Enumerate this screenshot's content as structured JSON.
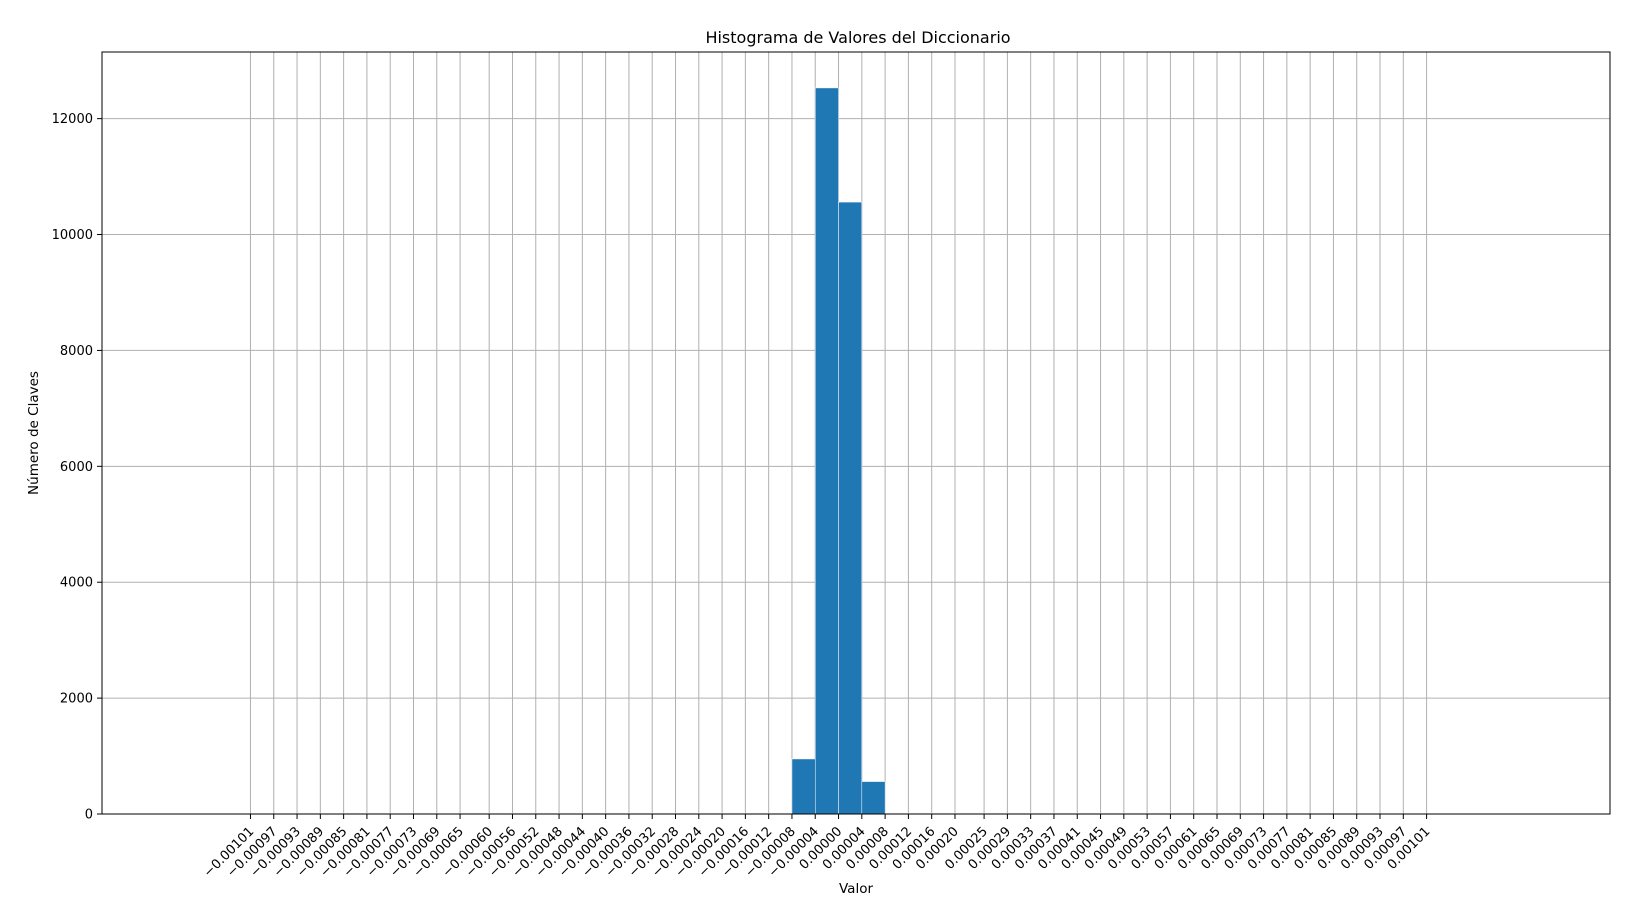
{
  "chart_data": {
    "type": "bar",
    "title": "Histograma de Valores del Diccionario",
    "xlabel": "Valor",
    "ylabel": "Número de Claves",
    "grid": true,
    "bar_color": "#1f77b4",
    "grid_color": "#b0b0b0",
    "ylim": [
      0,
      13150
    ],
    "yticks": [
      0,
      2000,
      4000,
      6000,
      8000,
      10000,
      12000
    ],
    "ytick_labels": [
      "0",
      "2000",
      "4000",
      "6000",
      "8000",
      "10000",
      "12000"
    ],
    "xlim": [
      -0.001265,
      0.001325
    ],
    "xticks": [
      -0.00101,
      -0.00097,
      -0.00093,
      -0.00089,
      -0.00085,
      -0.00081,
      -0.00077,
      -0.00073,
      -0.00069,
      -0.00065,
      -0.0006,
      -0.00056,
      -0.00052,
      -0.00048,
      -0.00044,
      -0.0004,
      -0.00036,
      -0.00032,
      -0.00028,
      -0.00024,
      -0.0002,
      -0.00016,
      -0.00012,
      -8e-05,
      -4e-05,
      0.0,
      4e-05,
      8e-05,
      0.00012,
      0.00016,
      0.0002,
      0.00025,
      0.00029,
      0.00033,
      0.00037,
      0.00041,
      0.00045,
      0.00049,
      0.00053,
      0.00057,
      0.00061,
      0.00065,
      0.00069,
      0.00073,
      0.00077,
      0.00081,
      0.00085,
      0.00089,
      0.00093,
      0.00097,
      0.00101
    ],
    "xtick_labels": [
      "−0.00101",
      "−0.00097",
      "−0.00093",
      "−0.00089",
      "−0.00085",
      "−0.00081",
      "−0.00077",
      "−0.00073",
      "−0.00069",
      "−0.00065",
      "−0.00060",
      "−0.00056",
      "−0.00052",
      "−0.00048",
      "−0.00044",
      "−0.00040",
      "−0.00036",
      "−0.00032",
      "−0.00028",
      "−0.00024",
      "−0.00020",
      "−0.00016",
      "−0.00012",
      "−0.00008",
      "−0.00004",
      "0.00000",
      "0.00004",
      "0.00008",
      "0.00012",
      "0.00016",
      "0.00020",
      "0.00025",
      "0.00029",
      "0.00033",
      "0.00037",
      "0.00041",
      "0.00045",
      "0.00049",
      "0.00053",
      "0.00057",
      "0.00061",
      "0.00065",
      "0.00069",
      "0.00073",
      "0.00077",
      "0.00081",
      "0.00085",
      "0.00089",
      "0.00093",
      "0.00097",
      "0.00101"
    ],
    "bins": [
      {
        "start": -0.00093,
        "end": -0.00089,
        "value": 5
      },
      {
        "start": -0.00085,
        "end": -0.00081,
        "value": 5
      },
      {
        "start": -0.00081,
        "end": -0.00077,
        "value": 5
      },
      {
        "start": -0.00073,
        "end": -0.00069,
        "value": 5
      },
      {
        "start": -0.00065,
        "end": -0.0006,
        "value": 5
      },
      {
        "start": -0.0006,
        "end": -0.00056,
        "value": 5
      },
      {
        "start": -0.00056,
        "end": -0.00052,
        "value": 5
      },
      {
        "start": -0.00052,
        "end": -0.00048,
        "value": 5
      },
      {
        "start": -0.00048,
        "end": -0.00044,
        "value": 5
      },
      {
        "start": -0.00044,
        "end": -0.0004,
        "value": 5
      },
      {
        "start": -0.0004,
        "end": -0.00036,
        "value": 5
      },
      {
        "start": -0.00036,
        "end": -0.00032,
        "value": 5
      },
      {
        "start": -0.00032,
        "end": -0.00028,
        "value": 5
      },
      {
        "start": -0.00028,
        "end": -0.00024,
        "value": 5
      },
      {
        "start": -0.00024,
        "end": -0.0002,
        "value": 5
      },
      {
        "start": -0.0002,
        "end": -0.00016,
        "value": 5
      },
      {
        "start": -0.00016,
        "end": -0.00012,
        "value": 5
      },
      {
        "start": -0.00012,
        "end": -8e-05,
        "value": 5
      },
      {
        "start": -8e-05,
        "end": -4e-05,
        "value": 950
      },
      {
        "start": -4e-05,
        "end": 0.0,
        "value": 12530
      },
      {
        "start": 0.0,
        "end": 4e-05,
        "value": 10560
      },
      {
        "start": 4e-05,
        "end": 8e-05,
        "value": 560
      },
      {
        "start": 8e-05,
        "end": 0.00012,
        "value": 5
      },
      {
        "start": 0.00012,
        "end": 0.00016,
        "value": 5
      },
      {
        "start": 0.00016,
        "end": 0.0002,
        "value": 5
      },
      {
        "start": 0.0002,
        "end": 0.00025,
        "value": 5
      },
      {
        "start": 0.00025,
        "end": 0.00029,
        "value": 5
      },
      {
        "start": 0.00029,
        "end": 0.00033,
        "value": 5
      },
      {
        "start": 0.00033,
        "end": 0.00037,
        "value": 5
      },
      {
        "start": 0.00037,
        "end": 0.00041,
        "value": 5
      },
      {
        "start": 0.00041,
        "end": 0.00045,
        "value": 5
      },
      {
        "start": 0.00045,
        "end": 0.00049,
        "value": 5
      },
      {
        "start": 0.00049,
        "end": 0.00053,
        "value": 5
      },
      {
        "start": 0.00053,
        "end": 0.00057,
        "value": 5
      },
      {
        "start": 0.00057,
        "end": 0.00061,
        "value": 5
      },
      {
        "start": 0.00061,
        "end": 0.00065,
        "value": 5
      },
      {
        "start": 0.00065,
        "end": 0.00069,
        "value": 5
      }
    ]
  }
}
